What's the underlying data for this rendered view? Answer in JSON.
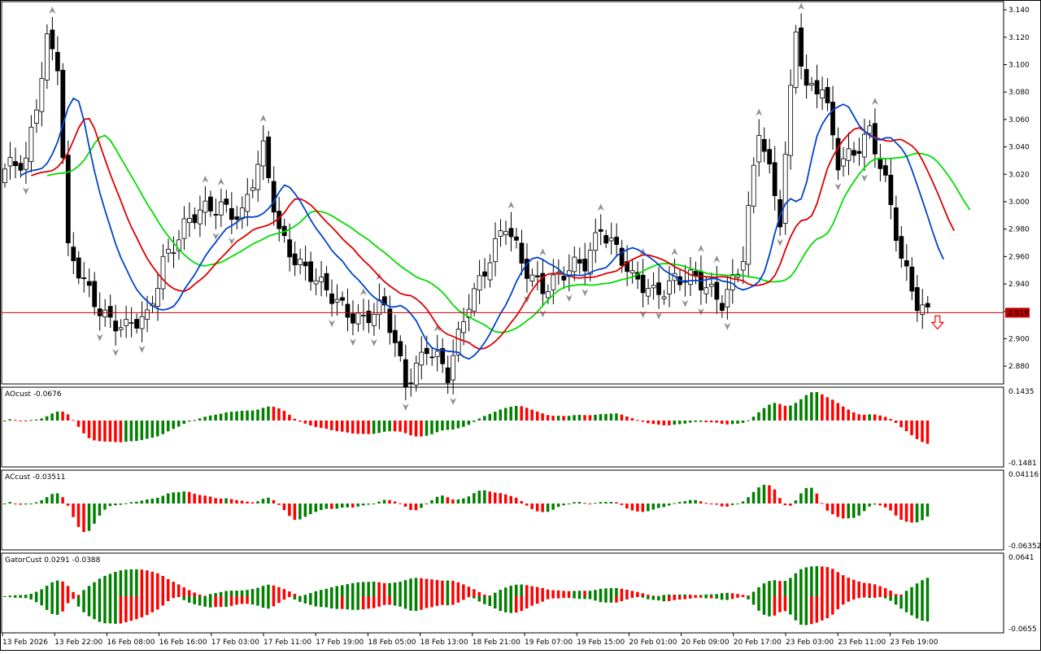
{
  "chart_data": {
    "type": "candlestick",
    "instrument_price_now": 2.919,
    "current_price_label": "2.919",
    "main_panel": {
      "y_ticks": [
        "3.140",
        "3.120",
        "3.100",
        "3.080",
        "3.060",
        "3.040",
        "3.020",
        "3.000",
        "2.980",
        "2.960",
        "2.940",
        "2.920",
        "2.900",
        "2.880"
      ],
      "ylim": [
        2.867,
        3.146
      ]
    },
    "x_ticks": [
      "13 Feb 2026",
      "13 Feb 22:00",
      "16 Feb 08:00",
      "16 Feb 16:00",
      "17 Feb 03:00",
      "17 Feb 11:00",
      "17 Feb 19:00",
      "18 Feb 05:00",
      "18 Feb 13:00",
      "18 Feb 21:00",
      "19 Feb 07:00",
      "19 Feb 15:00",
      "20 Feb 01:00",
      "20 Feb 09:00",
      "20 Feb 17:00",
      "23 Feb 03:00",
      "23 Feb 11:00",
      "23 Feb 19:00"
    ],
    "close_anchors": [
      [
        0,
        3.02
      ],
      [
        4,
        3.03
      ],
      [
        8,
        3.12
      ],
      [
        10,
        3.1
      ],
      [
        12,
        2.96
      ],
      [
        16,
        2.935
      ],
      [
        20,
        2.915
      ],
      [
        23,
        2.905
      ],
      [
        27,
        2.915
      ],
      [
        30,
        2.96
      ],
      [
        34,
        2.98
      ],
      [
        37,
        2.99
      ],
      [
        41,
        3.0
      ],
      [
        45,
        2.99
      ],
      [
        49,
        3.035
      ],
      [
        52,
        2.98
      ],
      [
        56,
        2.955
      ],
      [
        60,
        2.935
      ],
      [
        64,
        2.925
      ],
      [
        68,
        2.915
      ],
      [
        72,
        2.92
      ],
      [
        76,
        2.87
      ],
      [
        80,
        2.895
      ],
      [
        84,
        2.87
      ],
      [
        88,
        2.93
      ],
      [
        92,
        2.96
      ],
      [
        95,
        2.98
      ],
      [
        98,
        2.955
      ],
      [
        102,
        2.94
      ],
      [
        106,
        2.945
      ],
      [
        110,
        2.955
      ],
      [
        113,
        2.985
      ],
      [
        116,
        2.965
      ],
      [
        119,
        2.94
      ],
      [
        123,
        2.935
      ],
      [
        127,
        2.945
      ],
      [
        131,
        2.94
      ],
      [
        136,
        2.93
      ],
      [
        140,
        2.96
      ],
      [
        143,
        3.05
      ],
      [
        147,
        2.99
      ],
      [
        150,
        3.13
      ],
      [
        152,
        3.08
      ],
      [
        155,
        3.08
      ],
      [
        158,
        3.03
      ],
      [
        161,
        3.04
      ],
      [
        164,
        3.05
      ],
      [
        167,
        3.01
      ],
      [
        170,
        2.96
      ],
      [
        173,
        2.93
      ],
      [
        175,
        2.919
      ]
    ],
    "ma_lines": [
      {
        "color": "#00dd00",
        "period": 13,
        "shift": 8
      },
      {
        "color": "#dd0000",
        "period": 8,
        "shift": 5
      },
      {
        "color": "#0044cc",
        "period": 5,
        "shift": 3
      }
    ],
    "indicators": [
      {
        "label": "AOcust -0.0676",
        "max_label": "0.1435",
        "min_label": "-0.1481"
      },
      {
        "label": "ACcust -0.03511",
        "max_label": "0.04116",
        "min_label": "-0.06352"
      },
      {
        "label": "GatorCust 0.0291 -0.0388",
        "max_label": "0.0641",
        "min_label": "-0.0655"
      }
    ],
    "colors": {
      "up": "#008000",
      "down": "#ff0000",
      "candle_up_fill": "#ffffff",
      "candle_down_fill": "#000000",
      "price_line": "#c00000",
      "fractal": "#909090"
    },
    "arrow_signal": "sell-down-arrow"
  }
}
